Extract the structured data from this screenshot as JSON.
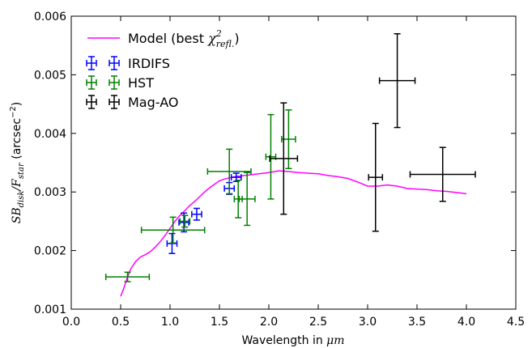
{
  "chart_data": {
    "type": "scatter",
    "xlabel_prefix": "Wavelength in ",
    "xlabel_unit": "μm",
    "ylabel_math_sb": "SB",
    "ylabel_math_sb_sub": "disk",
    "ylabel_math_slash": "/",
    "ylabel_math_f": "F",
    "ylabel_math_f_sub": "star",
    "ylabel_unit_prefix": " (arcsec",
    "ylabel_unit_exp": "−2",
    "ylabel_unit_suffix": ")",
    "xlim": [
      0.0,
      4.5
    ],
    "ylim": [
      0.001,
      0.006
    ],
    "xticks": [
      "0.0",
      "0.5",
      "1.0",
      "1.5",
      "2.0",
      "2.5",
      "3.0",
      "3.5",
      "4.0",
      "4.5"
    ],
    "yticks": [
      "0.001",
      "0.002",
      "0.003",
      "0.004",
      "0.005",
      "0.006"
    ],
    "xtick_values": [
      0.0,
      0.5,
      1.0,
      1.5,
      2.0,
      2.5,
      3.0,
      3.5,
      4.0,
      4.5
    ],
    "ytick_values": [
      0.001,
      0.002,
      0.003,
      0.004,
      0.005,
      0.006
    ],
    "grid": false,
    "legend_position": "top-left",
    "model": {
      "name_prefix": "Model (best ",
      "name_chi": "χ",
      "name_sup": "2",
      "name_sub": "refl.",
      "name_suffix": ")",
      "color": "#ff00ff",
      "x": [
        0.5,
        0.53,
        0.56,
        0.6,
        0.65,
        0.7,
        0.75,
        0.8,
        0.85,
        0.9,
        0.95,
        1.0,
        1.05,
        1.1,
        1.15,
        1.2,
        1.25,
        1.3,
        1.35,
        1.4,
        1.45,
        1.5,
        1.55,
        1.6,
        1.65,
        1.7,
        1.75,
        1.8,
        1.85,
        1.9,
        2.0,
        2.1,
        2.2,
        2.3,
        2.4,
        2.5,
        2.6,
        2.7,
        2.8,
        2.9,
        3.0,
        3.1,
        3.2,
        3.3,
        3.4,
        3.5,
        3.6,
        3.7,
        3.8,
        3.9,
        4.0
      ],
      "y": [
        0.00122,
        0.00135,
        0.0015,
        0.00168,
        0.00181,
        0.00189,
        0.00193,
        0.00198,
        0.00206,
        0.00215,
        0.00226,
        0.00238,
        0.0025,
        0.0026,
        0.00268,
        0.00277,
        0.00284,
        0.00292,
        0.003,
        0.00307,
        0.00313,
        0.00319,
        0.00322,
        0.00324,
        0.00326,
        0.00327,
        0.00328,
        0.00329,
        0.0033,
        0.00331,
        0.00333,
        0.00336,
        0.00335,
        0.00333,
        0.00332,
        0.00331,
        0.00328,
        0.00326,
        0.00323,
        0.00317,
        0.0031,
        0.0031,
        0.00312,
        0.0031,
        0.00306,
        0.00305,
        0.00304,
        0.00302,
        0.00301,
        0.00299,
        0.00297
      ]
    },
    "series": [
      {
        "name": "IRDIFS",
        "color": "#0000ff",
        "points": [
          {
            "x": 1.02,
            "y": 0.00212,
            "xerr": 0.05,
            "yerr": 0.00017
          },
          {
            "x": 1.14,
            "y": 0.00248,
            "xerr": 0.05,
            "yerr": 0.00016
          },
          {
            "x": 1.27,
            "y": 0.00262,
            "xerr": 0.05,
            "yerr": 0.0001
          },
          {
            "x": 1.6,
            "y": 0.00306,
            "xerr": 0.05,
            "yerr": 0.0001
          },
          {
            "x": 1.67,
            "y": 0.00325,
            "xerr": 0.05,
            "yerr": 7e-05
          }
        ]
      },
      {
        "name": "HST",
        "color": "#008000",
        "points": [
          {
            "x": 0.57,
            "y": 0.00155,
            "xerr": 0.22,
            "yerr": 8e-05
          },
          {
            "x": 1.03,
            "y": 0.00235,
            "xerr": 0.32,
            "yerr": 0.00022
          },
          {
            "x": 1.15,
            "y": 0.0025,
            "xerr": 0.05,
            "yerr": 0.0001
          },
          {
            "x": 1.6,
            "y": 0.00335,
            "xerr": 0.22,
            "yerr": 0.00038
          },
          {
            "x": 1.69,
            "y": 0.00288,
            "xerr": 0.04,
            "yerr": 0.00032
          },
          {
            "x": 1.78,
            "y": 0.00288,
            "xerr": 0.08,
            "yerr": 0.00045
          },
          {
            "x": 2.02,
            "y": 0.0036,
            "xerr": 0.05,
            "yerr": 0.00072
          },
          {
            "x": 2.2,
            "y": 0.0039,
            "xerr": 0.07,
            "yerr": 0.0005
          }
        ]
      },
      {
        "name": "Mag-AO",
        "color": "#000000",
        "points": [
          {
            "x": 2.15,
            "y": 0.00357,
            "xerr": 0.14,
            "yerr": 0.00095
          },
          {
            "x": 3.08,
            "y": 0.00325,
            "xerr": 0.07,
            "yerr": 0.00092
          },
          {
            "x": 3.3,
            "y": 0.0049,
            "xerr": 0.18,
            "yerr": 0.0008
          },
          {
            "x": 3.76,
            "y": 0.0033,
            "xerr": 0.33,
            "yerr": 0.00046
          }
        ]
      }
    ]
  }
}
